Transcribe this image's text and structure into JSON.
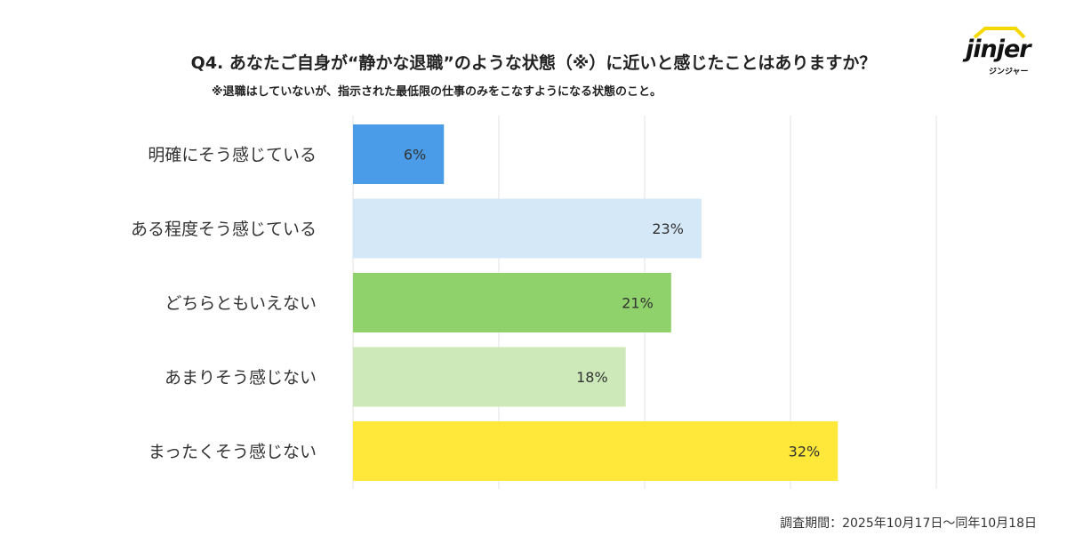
{
  "header": {
    "title": "Q4. あなたご自身が“静かな退職”のような状態（※）に近いと感じたことはありますか？",
    "subtitle": "※退職はしていないが、指示された最低限の仕事のみをこなすようになる状態のこと。"
  },
  "logo": {
    "text": "jinjer",
    "sub": "ジンジャー",
    "accent": "#f5d800"
  },
  "footer": {
    "period": "調査期間：2025年10月17日〜同年10月18日"
  },
  "chart_data": {
    "type": "bar",
    "orientation": "horizontal",
    "title": "",
    "xlabel": "",
    "ylabel": "",
    "categories": [
      "明確にそう感じている",
      "ある程度そう感じている",
      "どちらともいえない",
      "あまりそう感じない",
      "まったくそう感じない"
    ],
    "values": [
      6,
      23,
      21,
      18,
      32
    ],
    "data_labels": [
      "6%",
      "23%",
      "21%",
      "18%",
      "32%"
    ],
    "colors": [
      "#4a9be8",
      "#d4e8f8",
      "#8fd16a",
      "#cde9b9",
      "#ffe83a"
    ],
    "xlim": [
      0,
      38.5
    ],
    "grid": true,
    "legend": "none"
  }
}
